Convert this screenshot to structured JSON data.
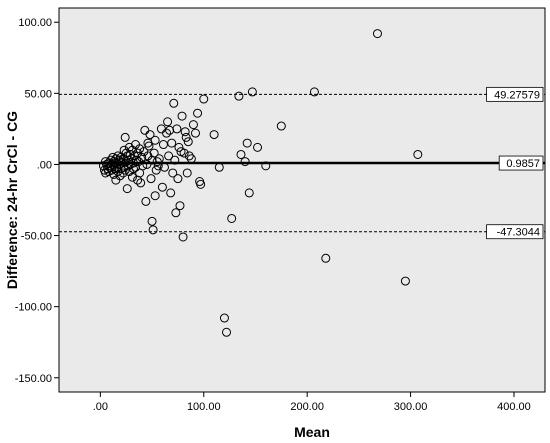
{
  "chart_data": {
    "type": "scatter",
    "title": "",
    "xlabel": "Mean",
    "ylabel": "Difference:  24-hr CrCl - CG",
    "xlim": [
      -40,
      430
    ],
    "ylim": [
      -160,
      110
    ],
    "xticks": [
      0,
      100,
      200,
      300,
      400
    ],
    "xtick_labels": [
      ".00",
      "100.00",
      "200.00",
      "300.00",
      "400.00"
    ],
    "yticks": [
      100,
      50,
      0,
      -50,
      -100,
      -150
    ],
    "ytick_labels": [
      "100.00",
      "50.00",
      ".00",
      "-50.00",
      "-100.00",
      "-150.00"
    ],
    "grid": false,
    "plot_background": "#eaeaea",
    "reference_lines": [
      {
        "y": 49.27579,
        "label": "49.27579",
        "style": "dashed"
      },
      {
        "y": 0.9857,
        "label": "0.9857",
        "style": "solid"
      },
      {
        "y": -47.3044,
        "label": "-47.3044",
        "style": "dashed"
      }
    ],
    "points": [
      [
        3,
        -1
      ],
      [
        4,
        -4
      ],
      [
        5,
        -6
      ],
      [
        5,
        2
      ],
      [
        6,
        0
      ],
      [
        7,
        -3
      ],
      [
        8,
        1
      ],
      [
        8,
        -5
      ],
      [
        9,
        -2
      ],
      [
        10,
        3
      ],
      [
        10,
        -1
      ],
      [
        11,
        -4
      ],
      [
        12,
        0
      ],
      [
        12,
        5
      ],
      [
        13,
        -7
      ],
      [
        13,
        2
      ],
      [
        14,
        -3
      ],
      [
        14,
        1
      ],
      [
        15,
        -11
      ],
      [
        15,
        4
      ],
      [
        16,
        -2
      ],
      [
        17,
        6
      ],
      [
        17,
        -5
      ],
      [
        18,
        0
      ],
      [
        18,
        3
      ],
      [
        19,
        -8
      ],
      [
        19,
        2
      ],
      [
        20,
        -3
      ],
      [
        20,
        5
      ],
      [
        21,
        1
      ],
      [
        22,
        -6
      ],
      [
        22,
        4
      ],
      [
        23,
        10
      ],
      [
        23,
        -2
      ],
      [
        24,
        19
      ],
      [
        24,
        -4
      ],
      [
        25,
        8
      ],
      [
        25,
        2
      ],
      [
        26,
        -17
      ],
      [
        26,
        6
      ],
      [
        27,
        -1
      ],
      [
        27,
        3
      ],
      [
        28,
        12
      ],
      [
        28,
        -5
      ],
      [
        29,
        0
      ],
      [
        29,
        7
      ],
      [
        30,
        4
      ],
      [
        31,
        -9
      ],
      [
        31,
        10
      ],
      [
        32,
        1
      ],
      [
        32,
        -3
      ],
      [
        33,
        6
      ],
      [
        34,
        14
      ],
      [
        34,
        -2
      ],
      [
        35,
        3
      ],
      [
        36,
        -11
      ],
      [
        36,
        8
      ],
      [
        37,
        2
      ],
      [
        38,
        -6
      ],
      [
        38,
        11
      ],
      [
        39,
        -13
      ],
      [
        40,
        5
      ],
      [
        41,
        -1
      ],
      [
        42,
        9
      ],
      [
        43,
        24
      ],
      [
        44,
        -26
      ],
      [
        45,
        0
      ],
      [
        46,
        6
      ],
      [
        46,
        15
      ],
      [
        47,
        13
      ],
      [
        48,
        21
      ],
      [
        49,
        -10
      ],
      [
        50,
        -40
      ],
      [
        50,
        3
      ],
      [
        51,
        -46
      ],
      [
        52,
        8
      ],
      [
        53,
        -22
      ],
      [
        53,
        17
      ],
      [
        54,
        -4
      ],
      [
        55,
        2
      ],
      [
        56,
        -1
      ],
      [
        57,
        4
      ],
      [
        59,
        25
      ],
      [
        60,
        -16
      ],
      [
        61,
        14
      ],
      [
        62,
        -2
      ],
      [
        64,
        22
      ],
      [
        65,
        30
      ],
      [
        66,
        6
      ],
      [
        67,
        24
      ],
      [
        68,
        -20
      ],
      [
        69,
        15
      ],
      [
        70,
        -6
      ],
      [
        71,
        43
      ],
      [
        72,
        3
      ],
      [
        73,
        -34
      ],
      [
        74,
        25
      ],
      [
        75,
        -10
      ],
      [
        76,
        12
      ],
      [
        77,
        -29
      ],
      [
        78,
        9
      ],
      [
        79,
        34
      ],
      [
        80,
        -51
      ],
      [
        81,
        8
      ],
      [
        82,
        23
      ],
      [
        83,
        19
      ],
      [
        84,
        -6
      ],
      [
        85,
        16
      ],
      [
        86,
        6
      ],
      [
        88,
        4
      ],
      [
        90,
        28
      ],
      [
        92,
        22
      ],
      [
        94,
        36
      ],
      [
        96,
        -12
      ],
      [
        97,
        -14
      ],
      [
        100,
        46
      ],
      [
        110,
        21
      ],
      [
        115,
        -2
      ],
      [
        120,
        -108
      ],
      [
        122,
        -118
      ],
      [
        127,
        -38
      ],
      [
        134,
        48
      ],
      [
        136,
        7
      ],
      [
        140,
        2
      ],
      [
        142,
        15
      ],
      [
        144,
        -20
      ],
      [
        147,
        51
      ],
      [
        152,
        12
      ],
      [
        160,
        -1
      ],
      [
        175,
        27
      ],
      [
        207,
        51
      ],
      [
        218,
        -66
      ],
      [
        268,
        92
      ],
      [
        295,
        -82
      ],
      [
        307,
        7
      ]
    ]
  }
}
